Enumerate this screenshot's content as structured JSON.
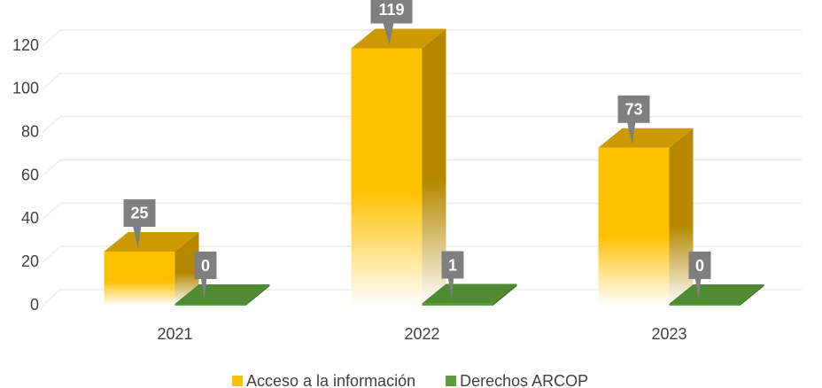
{
  "chart_data": {
    "type": "bar3d",
    "categories": [
      "2021",
      "2022",
      "2023"
    ],
    "series": [
      {
        "name": "Acceso a la información",
        "color": "#FFC000",
        "values": [
          25,
          119,
          73
        ]
      },
      {
        "name": "Derechos ARCOP",
        "color": "#5B9B3A",
        "values": [
          0,
          1,
          0
        ]
      }
    ],
    "ylim": [
      0,
      120
    ],
    "yticks": [
      0,
      20,
      40,
      60,
      80,
      100,
      120
    ],
    "grid": true,
    "legend": "bottom"
  }
}
